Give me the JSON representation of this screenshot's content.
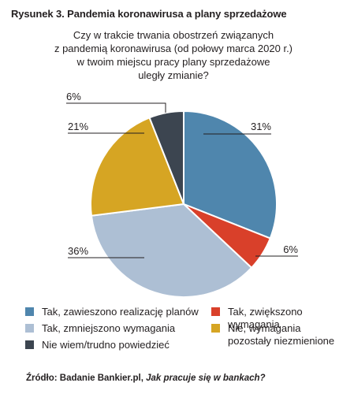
{
  "figure_title": "Rysunek 3. Pandemia koronawirusa a plany sprzedażowe",
  "question_lines": [
    "Czy w trakcie trwania obostrzeń związanych",
    "z pandemią koronawirusa (od połowy marca 2020 r.)",
    "w twoim miejscu pracy plany sprzedażowe",
    "uległy zmianie?"
  ],
  "source": {
    "prefix": "Źródło: Badanie Bankier.pl, ",
    "title": "Jak pracuje się w bankach?"
  },
  "chart_data": {
    "type": "pie",
    "title": "Czy w trakcie trwania obostrzeń związanych z pandemią koronawirusa (od połowy marca 2020 r.) w twoim miejscu pracy plany sprzedażowe uległy zmianie?",
    "slices": [
      {
        "label": "Tak, zawieszono realizację planów",
        "value": 31,
        "value_label": "31%",
        "color": "#4f86ad"
      },
      {
        "label": "Tak, zwiększono wymagania",
        "value": 6,
        "value_label": "6%",
        "color": "#d9402a"
      },
      {
        "label": "Tak, zmniejszono wymagania",
        "value": 36,
        "value_label": "36%",
        "color": "#adbfd4"
      },
      {
        "label": "Nie, wymagania pozostały niezmienione",
        "value": 21,
        "value_label": "21%",
        "color": "#d6a523"
      },
      {
        "label": "Nie wiem/trudno powiedzieć",
        "value": 6,
        "value_label": "6%",
        "color": "#3c4550"
      }
    ],
    "legend": {
      "placement": "bottom",
      "columns": 2
    }
  }
}
